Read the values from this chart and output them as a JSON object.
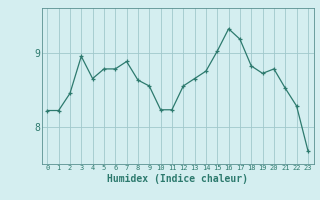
{
  "xlabel": "Humidex (Indice chaleur)",
  "x_values": [
    0,
    1,
    2,
    3,
    4,
    5,
    6,
    7,
    8,
    9,
    10,
    11,
    12,
    13,
    14,
    15,
    16,
    17,
    18,
    19,
    20,
    21,
    22,
    23
  ],
  "y_values": [
    8.22,
    8.22,
    8.45,
    8.95,
    8.65,
    8.78,
    8.78,
    8.88,
    8.63,
    8.55,
    8.23,
    8.23,
    8.55,
    8.65,
    8.75,
    9.02,
    9.32,
    9.18,
    8.82,
    8.72,
    8.78,
    8.52,
    8.28,
    7.68
  ],
  "line_color": "#2d7a6e",
  "bg_color": "#d4eef0",
  "grid_color": "#a0c8cc",
  "yticks": [
    8,
    9
  ],
  "ylim": [
    7.5,
    9.6
  ],
  "xlim": [
    -0.5,
    23.5
  ]
}
